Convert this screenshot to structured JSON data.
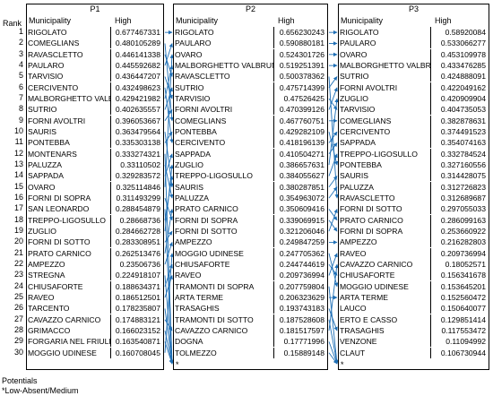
{
  "chart_data": {
    "type": "table",
    "rank_label": "Rank",
    "name_header": "Municipality",
    "value_header": "High",
    "ranks": [
      1,
      2,
      3,
      4,
      5,
      6,
      7,
      8,
      9,
      10,
      11,
      12,
      13,
      14,
      15,
      16,
      17,
      18,
      19,
      20,
      21,
      22,
      23,
      24,
      25,
      26,
      27,
      28,
      29,
      30
    ],
    "panels": [
      {
        "title": "P1",
        "rows": [
          {
            "name": "RIGOLATO",
            "value": "0.677467331"
          },
          {
            "name": "COMEGLIANS",
            "value": "0.480105289"
          },
          {
            "name": "RAVASCLETTO",
            "value": "0.446141338"
          },
          {
            "name": "PAULARO",
            "value": "0.445592682"
          },
          {
            "name": "TARVISIO",
            "value": "0.436447207"
          },
          {
            "name": "CERCIVENTO",
            "value": "0.432498623"
          },
          {
            "name": "MALBORGHETTO VALBRUNA",
            "value": "0.429421982"
          },
          {
            "name": "SUTRIO",
            "value": "0.402635557"
          },
          {
            "name": "FORNI AVOLTRI",
            "value": "0.396053667"
          },
          {
            "name": "SAURIS",
            "value": "0.363479564"
          },
          {
            "name": "PONTEBBA",
            "value": "0.335303138"
          },
          {
            "name": "MONTENARS",
            "value": "0.333274321"
          },
          {
            "name": "PALUZZA",
            "value": "0.33110502"
          },
          {
            "name": "SAPPADA",
            "value": "0.329283572"
          },
          {
            "name": "OVARO",
            "value": "0.325114846"
          },
          {
            "name": "FORNI DI SOPRA",
            "value": "0.311493299"
          },
          {
            "name": "SAN LEONARDO",
            "value": "0.288454879"
          },
          {
            "name": "TREPPO-LIGOSULLO",
            "value": "0.28668736"
          },
          {
            "name": "ZUGLIO",
            "value": "0.284662728"
          },
          {
            "name": "FORNI DI SOTTO",
            "value": "0.283308951"
          },
          {
            "name": "PRATO CARNICO",
            "value": "0.262513476"
          },
          {
            "name": "AMPEZZO",
            "value": "0.23506736"
          },
          {
            "name": "STREGNA",
            "value": "0.224918107"
          },
          {
            "name": "CHIUSAFORTE",
            "value": "0.188634371"
          },
          {
            "name": "RAVEO",
            "value": "0.186512501"
          },
          {
            "name": "TARCENTO",
            "value": "0.178235807"
          },
          {
            "name": "CAVAZZO CARNICO",
            "value": "0.174883121"
          },
          {
            "name": "GRIMACCO",
            "value": "0.166023152"
          },
          {
            "name": "FORGARIA NEL FRIULI",
            "value": "0.163540871"
          },
          {
            "name": "MOGGIO UDINESE",
            "value": "0.160708045"
          }
        ]
      },
      {
        "title": "P2",
        "rows": [
          {
            "name": "RIGOLATO",
            "value": "0.656230243"
          },
          {
            "name": "PAULARO",
            "value": "0.590880181"
          },
          {
            "name": "OVARO",
            "value": "0.524301726"
          },
          {
            "name": "MALBORGHETTO VALBRUNA",
            "value": "0.519251391"
          },
          {
            "name": "RAVASCLETTO",
            "value": "0.500378362"
          },
          {
            "name": "SUTRIO",
            "value": "0.475714399"
          },
          {
            "name": "TARVISIO",
            "value": "0.47526425"
          },
          {
            "name": "FORNI AVOLTRI",
            "value": "0.470399126"
          },
          {
            "name": "COMEGLIANS",
            "value": "0.467760751"
          },
          {
            "name": "PONTEBBA",
            "value": "0.429282109"
          },
          {
            "name": "CERCIVENTO",
            "value": "0.418196139"
          },
          {
            "name": "SAPPADA",
            "value": "0.410504271"
          },
          {
            "name": "ZUGLIO",
            "value": "0.386657631"
          },
          {
            "name": "TREPPO-LIGOSULLO",
            "value": "0.384055627"
          },
          {
            "name": "SAURIS",
            "value": "0.380287851"
          },
          {
            "name": "PALUZZA",
            "value": "0.354963072"
          },
          {
            "name": "PRATO CARNICO",
            "value": "0.350609416"
          },
          {
            "name": "FORNI DI SOPRA",
            "value": "0.339069915"
          },
          {
            "name": "FORNI DI SOTTO",
            "value": "0.321206046"
          },
          {
            "name": "AMPEZZO",
            "value": "0.249847259"
          },
          {
            "name": "MOGGIO UDINESE",
            "value": "0.247705362"
          },
          {
            "name": "CHIUSAFORTE",
            "value": "0.244744619"
          },
          {
            "name": "RAVEO",
            "value": "0.209736994"
          },
          {
            "name": "TRAMONTI DI SOPRA",
            "value": "0.207759804"
          },
          {
            "name": "ARTA TERME",
            "value": "0.206323629"
          },
          {
            "name": "TRASAGHIS",
            "value": "0.193743183"
          },
          {
            "name": "TRAMONTI DI SOTTO",
            "value": "0.187528608"
          },
          {
            "name": "CAVAZZO CARNICO",
            "value": "0.181517597"
          },
          {
            "name": "DOGNA",
            "value": "0.17771996"
          },
          {
            "name": "TOLMEZZO",
            "value": "0.15889148"
          }
        ]
      },
      {
        "title": "P3",
        "rows": [
          {
            "name": "RIGOLATO",
            "value": "0.58920084"
          },
          {
            "name": "PAULARO",
            "value": "0.533066277"
          },
          {
            "name": "OVARO",
            "value": "0.453109978"
          },
          {
            "name": "MALBORGHETTO VALBRUNA",
            "value": "0.433476285"
          },
          {
            "name": "SUTRIO",
            "value": "0.424888091"
          },
          {
            "name": "FORNI AVOLTRI",
            "value": "0.422049162"
          },
          {
            "name": "ZUGLIO",
            "value": "0.420909904"
          },
          {
            "name": "TARVISIO",
            "value": "0.404735053"
          },
          {
            "name": "COMEGLIANS",
            "value": "0.382878631"
          },
          {
            "name": "CERCIVENTO",
            "value": "0.374491523"
          },
          {
            "name": "SAPPADA",
            "value": "0.354074163"
          },
          {
            "name": "TREPPO-LIGOSULLO",
            "value": "0.332784524"
          },
          {
            "name": "PONTEBBA",
            "value": "0.327160556"
          },
          {
            "name": "SAURIS",
            "value": "0.314428075"
          },
          {
            "name": "PALUZZA",
            "value": "0.312726823"
          },
          {
            "name": "RAVASCLETTO",
            "value": "0.312689687"
          },
          {
            "name": "FORNI DI SOTTO",
            "value": "0.297055033"
          },
          {
            "name": "PRATO CARNICO",
            "value": "0.286099163"
          },
          {
            "name": "FORNI DI SOPRA",
            "value": "0.253660922"
          },
          {
            "name": "AMPEZZO",
            "value": "0.216282803"
          },
          {
            "name": "RAVEO",
            "value": "0.209736994"
          },
          {
            "name": "CAVAZZO CARNICO",
            "value": "0.18052571"
          },
          {
            "name": "CHIUSAFORTE",
            "value": "0.156341678"
          },
          {
            "name": "MOGGIO UDINESE",
            "value": "0.153645201"
          },
          {
            "name": "ARTA TERME",
            "value": "0.152560472"
          },
          {
            "name": "LAUCO",
            "value": "0.150640077"
          },
          {
            "name": "ERTO E CASSO",
            "value": "0.129851414"
          },
          {
            "name": "TRASAGHIS",
            "value": "0.117553472"
          },
          {
            "name": "VENZONE",
            "value": "0.11094992"
          },
          {
            "name": "CLAUT",
            "value": "0.106730944"
          }
        ]
      }
    ],
    "arrows_p1_to_p2": [
      [
        1,
        1
      ],
      [
        2,
        9
      ],
      [
        3,
        5
      ],
      [
        4,
        2
      ],
      [
        5,
        7
      ],
      [
        6,
        11
      ],
      [
        7,
        4
      ],
      [
        8,
        6
      ],
      [
        9,
        8
      ],
      [
        10,
        15
      ],
      [
        11,
        10
      ],
      [
        12,
        31
      ],
      [
        13,
        16
      ],
      [
        14,
        12
      ],
      [
        15,
        3
      ],
      [
        16,
        18
      ],
      [
        17,
        31
      ],
      [
        18,
        14
      ],
      [
        19,
        13
      ],
      [
        20,
        19
      ],
      [
        21,
        17
      ],
      [
        22,
        20
      ],
      [
        23,
        31
      ],
      [
        24,
        22
      ],
      [
        25,
        23
      ],
      [
        26,
        31
      ],
      [
        27,
        28
      ],
      [
        28,
        31
      ],
      [
        29,
        31
      ],
      [
        30,
        21
      ]
    ],
    "arrows_p2_to_p3": [
      [
        1,
        1
      ],
      [
        2,
        2
      ],
      [
        3,
        3
      ],
      [
        4,
        4
      ],
      [
        5,
        16
      ],
      [
        6,
        5
      ],
      [
        7,
        8
      ],
      [
        8,
        6
      ],
      [
        9,
        9
      ],
      [
        10,
        13
      ],
      [
        11,
        10
      ],
      [
        12,
        11
      ],
      [
        13,
        7
      ],
      [
        14,
        12
      ],
      [
        15,
        14
      ],
      [
        16,
        15
      ],
      [
        17,
        18
      ],
      [
        18,
        19
      ],
      [
        19,
        17
      ],
      [
        20,
        20
      ],
      [
        21,
        24
      ],
      [
        22,
        23
      ],
      [
        23,
        21
      ],
      [
        24,
        31
      ],
      [
        25,
        25
      ],
      [
        26,
        28
      ],
      [
        27,
        31
      ],
      [
        28,
        22
      ],
      [
        29,
        31
      ],
      [
        30,
        31
      ]
    ],
    "arrow_color": "#1f6fb5",
    "star_label": "*",
    "footnote_title": "Potentials",
    "footnote_text": "*Low-Absent/Medium"
  }
}
